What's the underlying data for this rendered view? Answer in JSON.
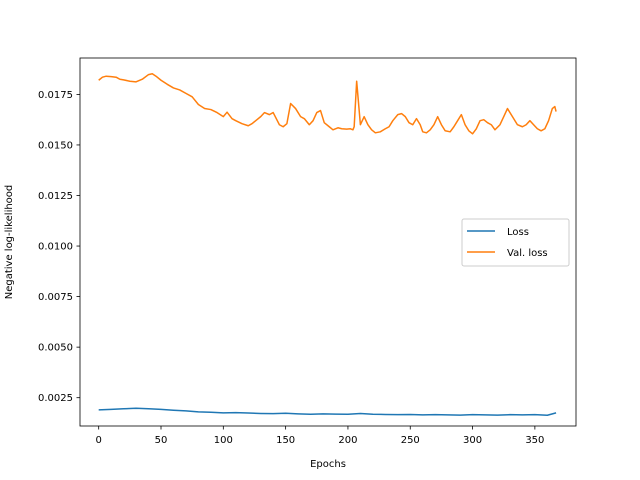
{
  "chart_data": {
    "type": "line",
    "title": "",
    "xlabel": "Epochs",
    "ylabel": "Negative log-likelihood",
    "xlim": [
      -15,
      383
    ],
    "ylim": [
      0.0011,
      0.0193
    ],
    "xticks": [
      0,
      50,
      100,
      150,
      200,
      250,
      300,
      350
    ],
    "xtick_labels": [
      "0",
      "50",
      "100",
      "150",
      "200",
      "250",
      "300",
      "350"
    ],
    "yticks": [
      0.0025,
      0.005,
      0.0075,
      0.01,
      0.0125,
      0.015,
      0.0175
    ],
    "ytick_labels": [
      "0.0025",
      "0.0050",
      "0.0075",
      "0.0100",
      "0.0125",
      "0.0150",
      "0.0175"
    ],
    "grid": false,
    "legend_position": "center-right",
    "series": [
      {
        "name": "Loss",
        "color": "#1f77b4",
        "x": [
          0,
          10,
          20,
          30,
          40,
          50,
          60,
          70,
          80,
          90,
          100,
          110,
          120,
          130,
          140,
          150,
          160,
          170,
          180,
          190,
          200,
          210,
          220,
          230,
          240,
          250,
          260,
          270,
          280,
          290,
          300,
          310,
          320,
          330,
          340,
          350,
          360,
          367
        ],
        "y": [
          0.0019,
          0.00192,
          0.00195,
          0.00198,
          0.00195,
          0.00192,
          0.00188,
          0.00185,
          0.0018,
          0.00178,
          0.00175,
          0.00176,
          0.00174,
          0.00172,
          0.00171,
          0.00173,
          0.0017,
          0.00168,
          0.0017,
          0.00169,
          0.00168,
          0.00172,
          0.00168,
          0.00167,
          0.00166,
          0.00167,
          0.00165,
          0.00166,
          0.00165,
          0.00164,
          0.00166,
          0.00165,
          0.00164,
          0.00166,
          0.00165,
          0.00166,
          0.00163,
          0.00175
        ]
      },
      {
        "name": "Val. loss",
        "color": "#ff7f0e",
        "x": [
          0,
          3,
          6,
          10,
          14,
          17,
          20,
          25,
          30,
          35,
          40,
          43,
          46,
          50,
          55,
          60,
          65,
          70,
          75,
          80,
          85,
          90,
          95,
          100,
          103,
          107,
          110,
          115,
          120,
          123,
          126,
          130,
          133,
          137,
          140,
          145,
          148,
          151,
          154,
          158,
          162,
          165,
          169,
          172,
          175,
          178,
          181,
          185,
          188,
          192,
          195,
          199,
          202,
          204,
          205,
          207,
          210,
          213,
          216,
          219,
          222,
          226,
          230,
          233,
          236,
          240,
          243,
          246,
          249,
          252,
          255,
          258,
          260,
          263,
          266,
          269,
          272,
          275,
          278,
          282,
          285,
          288,
          291,
          294,
          297,
          300,
          303,
          306,
          309,
          312,
          315,
          318,
          322,
          325,
          328,
          332,
          336,
          340,
          343,
          346,
          349,
          352,
          355,
          358,
          361,
          364,
          366,
          367
        ],
        "y": [
          0.0182,
          0.01835,
          0.0184,
          0.01838,
          0.01835,
          0.01825,
          0.01822,
          0.01815,
          0.01812,
          0.01825,
          0.01848,
          0.01852,
          0.0184,
          0.0182,
          0.018,
          0.01782,
          0.01772,
          0.01755,
          0.01738,
          0.017,
          0.0168,
          0.01675,
          0.0166,
          0.0164,
          0.01662,
          0.0163,
          0.0162,
          0.01605,
          0.01595,
          0.01605,
          0.0162,
          0.0164,
          0.0166,
          0.0165,
          0.0166,
          0.016,
          0.0159,
          0.01605,
          0.01705,
          0.0168,
          0.0164,
          0.0163,
          0.016,
          0.0162,
          0.0166,
          0.0167,
          0.0161,
          0.0159,
          0.01575,
          0.01585,
          0.0158,
          0.01578,
          0.0158,
          0.01575,
          0.0159,
          0.01815,
          0.016,
          0.0164,
          0.016,
          0.01575,
          0.0156,
          0.01565,
          0.0158,
          0.0159,
          0.0162,
          0.0165,
          0.01655,
          0.0164,
          0.0161,
          0.016,
          0.0163,
          0.016,
          0.01565,
          0.0156,
          0.01575,
          0.016,
          0.0164,
          0.016,
          0.0157,
          0.01565,
          0.0159,
          0.0162,
          0.0165,
          0.016,
          0.0157,
          0.01555,
          0.0158,
          0.0162,
          0.01625,
          0.0161,
          0.016,
          0.01575,
          0.016,
          0.0164,
          0.0168,
          0.0164,
          0.016,
          0.0159,
          0.016,
          0.0162,
          0.016,
          0.0158,
          0.0157,
          0.0158,
          0.0162,
          0.0168,
          0.0169,
          0.01665
        ]
      }
    ]
  }
}
